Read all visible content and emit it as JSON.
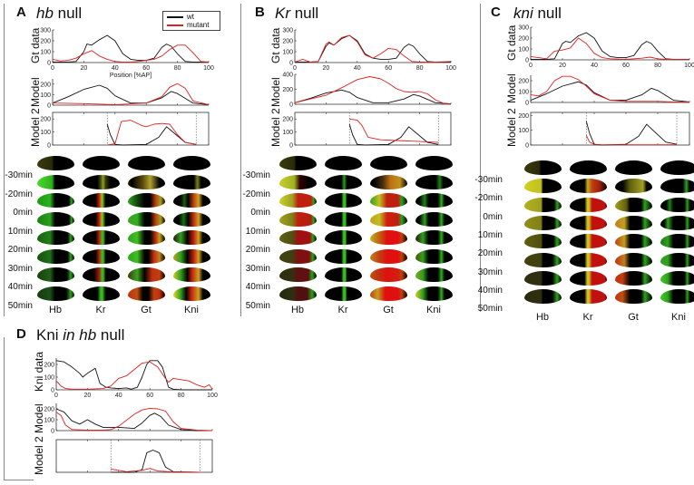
{
  "colors": {
    "wt": "#111111",
    "mutant": "#e02020",
    "border": "#888888"
  },
  "legend": {
    "items": [
      {
        "label": "wt",
        "color": "#111111"
      },
      {
        "label": "mutant",
        "color": "#e02020"
      }
    ]
  },
  "time_labels": [
    "-30min",
    "-20min",
    "0min",
    "10min",
    "20min",
    "30min",
    "40min",
    "50min"
  ],
  "gene_labels": [
    "Hb",
    "Kr",
    "Gt",
    "Kni"
  ],
  "panels": {
    "A": {
      "letter": "A",
      "title_italic": "hb",
      "title_rest": " null",
      "ylabels": [
        "Gt data",
        "Model",
        "Model 2"
      ],
      "xlabel": "Position [%AP]"
    },
    "B": {
      "letter": "B",
      "title_italic": "Kr",
      "title_rest": " null",
      "ylabels": [
        "Gt data",
        "Model",
        "Model 2"
      ]
    },
    "C": {
      "letter": "C",
      "title_italic": "kni",
      "title_rest": " null",
      "ylabels": [
        "Gt data",
        "Model",
        "Model 2"
      ]
    },
    "D": {
      "letter": "D",
      "title_pre": "Kni ",
      "title_italic": "in hb",
      "title_rest": " null",
      "ylabels": [
        "Kni data",
        "Model",
        "Model 2"
      ]
    }
  },
  "chart_data": [
    {
      "id": "A1",
      "type": "line",
      "title": "",
      "ylabel": "Gt data",
      "xlabel": "Position [%AP]",
      "xlim": [
        0,
        100
      ],
      "ylim": [
        0,
        300
      ],
      "xticks": [
        0,
        20,
        40,
        60,
        80,
        100
      ],
      "yticks": [
        0,
        100,
        200,
        300
      ],
      "series": [
        {
          "name": "wt",
          "x": [
            0,
            10,
            15,
            20,
            22,
            25,
            30,
            35,
            40,
            45,
            50,
            55,
            60,
            65,
            70,
            73,
            76,
            80,
            85,
            90,
            95,
            100
          ],
          "y": [
            5,
            5,
            10,
            100,
            170,
            160,
            210,
            250,
            200,
            80,
            30,
            20,
            20,
            40,
            140,
            170,
            150,
            80,
            10,
            5,
            5,
            5
          ]
        },
        {
          "name": "mutant",
          "x": [
            0,
            5,
            10,
            15,
            20,
            25,
            30,
            35,
            40,
            45,
            50,
            55,
            60,
            65,
            70,
            75,
            80,
            85,
            90,
            95,
            100
          ],
          "y": [
            30,
            15,
            20,
            40,
            80,
            110,
            60,
            30,
            10,
            5,
            5,
            10,
            20,
            30,
            60,
            120,
            160,
            160,
            90,
            10,
            5
          ]
        }
      ]
    },
    {
      "id": "A2",
      "type": "line",
      "ylabel": "Model",
      "xlim": [
        0,
        100
      ],
      "ylim": [
        0,
        250
      ],
      "yticks": [
        0,
        100,
        200
      ],
      "series": [
        {
          "name": "wt",
          "x": [
            0,
            10,
            20,
            30,
            35,
            40,
            50,
            60,
            70,
            76,
            80,
            90,
            100
          ],
          "y": [
            20,
            80,
            150,
            190,
            160,
            90,
            20,
            20,
            70,
            130,
            110,
            20,
            5
          ]
        },
        {
          "name": "mutant",
          "x": [
            0,
            20,
            40,
            60,
            70,
            75,
            80,
            85,
            90,
            100
          ],
          "y": [
            20,
            15,
            5,
            20,
            80,
            170,
            205,
            160,
            40,
            5
          ]
        }
      ]
    },
    {
      "id": "A3",
      "type": "line",
      "ylabel": "Model 2",
      "xlim": [
        0,
        100
      ],
      "ylim": [
        0,
        250
      ],
      "yticks": [
        0,
        100,
        200
      ],
      "vlines": [
        35,
        92
      ],
      "series": [
        {
          "name": "wt",
          "x": [
            35,
            37,
            40,
            45,
            60,
            68,
            73,
            78,
            85,
            92
          ],
          "y": [
            160,
            80,
            5,
            0,
            5,
            60,
            140,
            90,
            20,
            5
          ]
        },
        {
          "name": "mutant",
          "x": [
            35,
            40,
            44,
            50,
            57,
            60,
            65,
            70,
            75,
            80,
            85,
            92
          ],
          "y": [
            0,
            10,
            180,
            190,
            150,
            140,
            160,
            165,
            160,
            80,
            20,
            5
          ]
        }
      ]
    },
    {
      "id": "B1",
      "type": "line",
      "ylabel": "Gt data",
      "xlim": [
        0,
        100
      ],
      "ylim": [
        0,
        300
      ],
      "xticks": [
        0,
        20,
        40,
        60,
        80,
        100
      ],
      "yticks": [
        0,
        100,
        200,
        300
      ],
      "series": [
        {
          "name": "wt",
          "x": [
            0,
            10,
            15,
            20,
            22,
            25,
            30,
            35,
            40,
            45,
            50,
            55,
            60,
            65,
            70,
            73,
            76,
            80,
            85,
            90,
            100
          ],
          "y": [
            5,
            5,
            10,
            150,
            180,
            160,
            220,
            250,
            200,
            80,
            40,
            30,
            30,
            40,
            140,
            170,
            150,
            80,
            10,
            5,
            5
          ]
        },
        {
          "name": "mutant",
          "x": [
            0,
            5,
            10,
            15,
            20,
            22,
            25,
            30,
            35,
            40,
            45,
            50,
            55,
            60,
            65,
            70,
            75,
            80,
            85,
            90,
            100
          ],
          "y": [
            5,
            30,
            5,
            10,
            170,
            190,
            160,
            230,
            250,
            190,
            70,
            40,
            80,
            130,
            120,
            60,
            10,
            5,
            5,
            5,
            10
          ]
        }
      ]
    },
    {
      "id": "B2",
      "type": "line",
      "ylabel": "Model",
      "xlim": [
        0,
        100
      ],
      "ylim": [
        0,
        400
      ],
      "yticks": [
        0,
        200,
        400
      ],
      "series": [
        {
          "name": "wt",
          "x": [
            0,
            10,
            20,
            30,
            35,
            40,
            50,
            60,
            70,
            76,
            80,
            90,
            100
          ],
          "y": [
            20,
            80,
            150,
            190,
            160,
            90,
            20,
            20,
            70,
            130,
            110,
            20,
            5
          ]
        },
        {
          "name": "mutant",
          "x": [
            0,
            10,
            20,
            30,
            40,
            48,
            55,
            60,
            65,
            70,
            75,
            80,
            85,
            90,
            95,
            100
          ],
          "y": [
            20,
            70,
            120,
            220,
            330,
            370,
            340,
            280,
            210,
            170,
            160,
            170,
            140,
            60,
            15,
            5
          ]
        }
      ]
    },
    {
      "id": "B3",
      "type": "line",
      "ylabel": "Model 2",
      "xlim": [
        0,
        100
      ],
      "ylim": [
        0,
        250
      ],
      "yticks": [
        0,
        100,
        200
      ],
      "vlines": [
        35,
        92
      ],
      "series": [
        {
          "name": "wt",
          "x": [
            35,
            37,
            40,
            45,
            60,
            68,
            73,
            78,
            85,
            92
          ],
          "y": [
            160,
            80,
            5,
            0,
            5,
            60,
            140,
            90,
            20,
            5
          ]
        },
        {
          "name": "mutant",
          "x": [
            35,
            40,
            43,
            47,
            55,
            65,
            75,
            85,
            92
          ],
          "y": [
            200,
            190,
            150,
            60,
            40,
            35,
            30,
            25,
            20
          ]
        }
      ]
    },
    {
      "id": "C1",
      "type": "line",
      "ylabel": "Gt data",
      "xlim": [
        0,
        100
      ],
      "ylim": [
        0,
        300
      ],
      "xticks": [
        0,
        20,
        40,
        60,
        80,
        100
      ],
      "yticks": [
        0,
        100,
        200,
        300
      ],
      "series": [
        {
          "name": "wt",
          "x": [
            0,
            10,
            15,
            20,
            22,
            25,
            30,
            35,
            40,
            45,
            50,
            55,
            60,
            65,
            70,
            73,
            76,
            80,
            85,
            90,
            100
          ],
          "y": [
            5,
            5,
            10,
            150,
            170,
            160,
            220,
            250,
            200,
            80,
            30,
            20,
            20,
            40,
            140,
            170,
            150,
            80,
            10,
            5,
            5
          ]
        },
        {
          "name": "mutant",
          "x": [
            0,
            5,
            10,
            15,
            20,
            25,
            30,
            35,
            40,
            45,
            50,
            60,
            70,
            75,
            80,
            85,
            90,
            100
          ],
          "y": [
            30,
            20,
            10,
            80,
            90,
            110,
            200,
            150,
            60,
            20,
            10,
            5,
            15,
            25,
            10,
            5,
            5,
            5
          ]
        }
      ]
    },
    {
      "id": "C2",
      "type": "line",
      "ylabel": "Model",
      "xlim": [
        0,
        100
      ],
      "ylim": [
        0,
        250
      ],
      "yticks": [
        0,
        100,
        200
      ],
      "series": [
        {
          "name": "wt",
          "x": [
            0,
            10,
            20,
            30,
            35,
            40,
            50,
            60,
            70,
            76,
            80,
            90,
            100
          ],
          "y": [
            20,
            80,
            150,
            190,
            160,
            90,
            20,
            20,
            70,
            130,
            110,
            20,
            5
          ]
        },
        {
          "name": "mutant",
          "x": [
            0,
            5,
            10,
            15,
            20,
            25,
            30,
            35,
            40,
            50,
            60,
            70,
            80,
            90,
            100
          ],
          "y": [
            70,
            60,
            100,
            200,
            240,
            240,
            210,
            150,
            80,
            20,
            10,
            10,
            10,
            5,
            5
          ]
        }
      ]
    },
    {
      "id": "C3",
      "type": "line",
      "ylabel": "Model 2",
      "xlim": [
        0,
        100
      ],
      "ylim": [
        0,
        220
      ],
      "yticks": [
        0,
        100,
        200
      ],
      "vlines": [
        35,
        92
      ],
      "series": [
        {
          "name": "wt",
          "x": [
            35,
            37,
            40,
            45,
            60,
            68,
            73,
            78,
            85,
            92
          ],
          "y": [
            160,
            80,
            5,
            0,
            5,
            60,
            140,
            90,
            20,
            5
          ]
        },
        {
          "name": "mutant",
          "x": [
            35,
            37,
            40,
            45,
            92
          ],
          "y": [
            65,
            20,
            5,
            2,
            2
          ]
        }
      ]
    },
    {
      "id": "D1",
      "type": "line",
      "ylabel": "Kni data",
      "xlim": [
        0,
        100
      ],
      "ylim": [
        0,
        250
      ],
      "xticks": [
        0,
        20,
        40,
        60,
        80,
        100
      ],
      "yticks": [
        0,
        100,
        200
      ],
      "series": [
        {
          "name": "wt",
          "x": [
            0,
            5,
            10,
            15,
            17,
            20,
            25,
            28,
            32,
            35,
            40,
            45,
            48,
            52,
            55,
            58,
            60,
            65,
            68,
            72,
            75,
            80,
            90,
            100
          ],
          "y": [
            230,
            220,
            180,
            130,
            100,
            130,
            170,
            50,
            20,
            15,
            10,
            15,
            5,
            20,
            100,
            200,
            230,
            230,
            180,
            20,
            5,
            0,
            0,
            0
          ]
        },
        {
          "name": "mutant",
          "x": [
            0,
            3,
            6,
            10,
            20,
            30,
            35,
            40,
            45,
            50,
            55,
            60,
            65,
            70,
            72,
            75,
            80,
            85,
            90,
            95,
            98,
            100
          ],
          "y": [
            70,
            30,
            10,
            5,
            5,
            10,
            30,
            90,
            110,
            160,
            210,
            220,
            180,
            90,
            60,
            90,
            80,
            70,
            40,
            20,
            40,
            5
          ]
        }
      ]
    },
    {
      "id": "D2",
      "type": "line",
      "ylabel": "Model",
      "xlim": [
        0,
        100
      ],
      "ylim": [
        0,
        250
      ],
      "yticks": [
        0,
        100,
        200
      ],
      "series": [
        {
          "name": "wt",
          "x": [
            0,
            5,
            10,
            15,
            20,
            25,
            30,
            40,
            50,
            55,
            60,
            63,
            67,
            72,
            80,
            90,
            100
          ],
          "y": [
            200,
            170,
            90,
            60,
            100,
            60,
            30,
            30,
            20,
            70,
            140,
            160,
            130,
            50,
            10,
            0,
            0
          ]
        },
        {
          "name": "mutant",
          "x": [
            0,
            3,
            6,
            10,
            20,
            30,
            35,
            40,
            50,
            55,
            60,
            65,
            70,
            75,
            80,
            90,
            100
          ],
          "y": [
            170,
            140,
            50,
            10,
            5,
            5,
            10,
            40,
            150,
            190,
            205,
            200,
            180,
            80,
            20,
            5,
            0
          ]
        }
      ]
    },
    {
      "id": "D3",
      "type": "line",
      "ylabel": "Model 2",
      "xlim": [
        0,
        100
      ],
      "ylim": [
        0,
        250
      ],
      "yticks": [],
      "vlines": [
        35,
        92
      ],
      "series": [
        {
          "name": "wt",
          "x": [
            35,
            50,
            55,
            58,
            62,
            66,
            70,
            75,
            92
          ],
          "y": [
            0,
            0,
            20,
            150,
            170,
            150,
            40,
            5,
            0
          ]
        },
        {
          "name": "mutant",
          "x": [
            35,
            45,
            55,
            60,
            65,
            75,
            92
          ],
          "y": [
            25,
            5,
            15,
            30,
            10,
            3,
            0
          ]
        }
      ]
    }
  ]
}
